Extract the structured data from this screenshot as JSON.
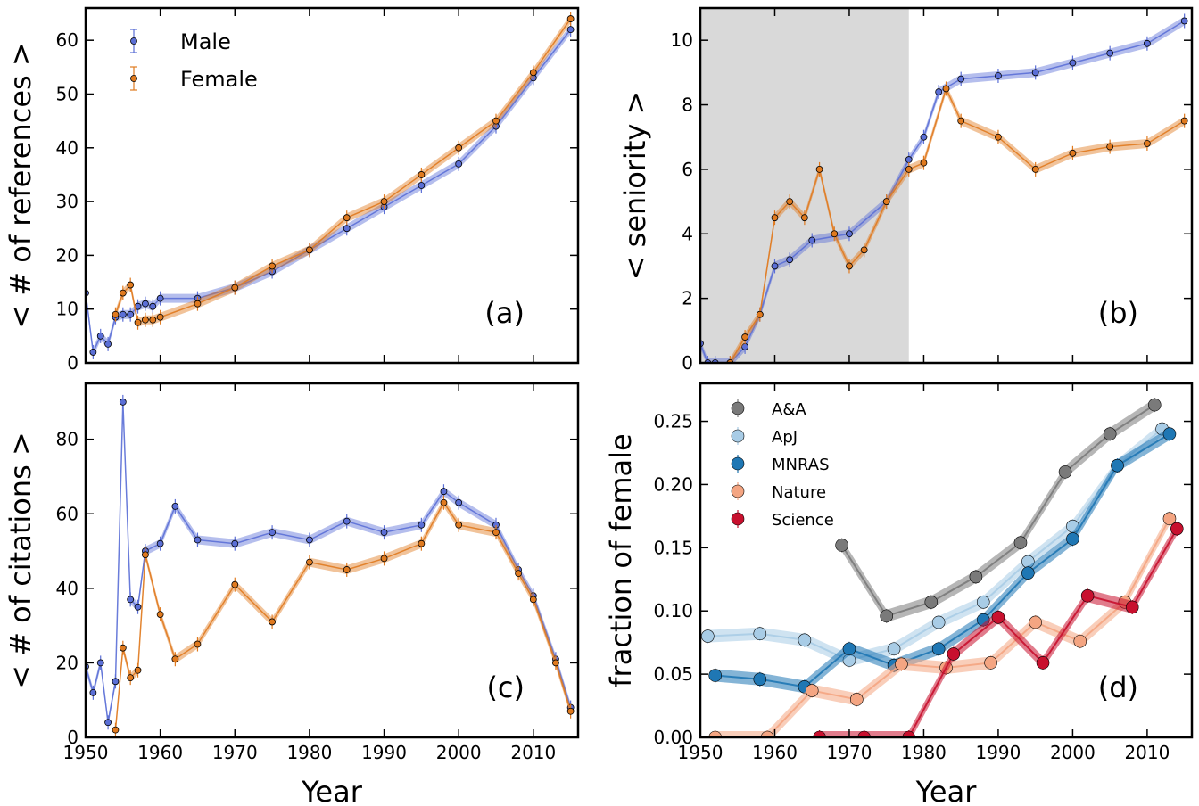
{
  "colors": {
    "male": "#5b6fd6",
    "female": "#e07a1f",
    "aa": "#7a7a7a",
    "apj": "#a8cce6",
    "mnras": "#1f77b4",
    "nature": "#f4a582",
    "science": "#c8102e",
    "shade": "#d9d9d9"
  },
  "chart_data": [
    {
      "id": "a",
      "type": "line",
      "panel_label": "(a)",
      "xlabel": "",
      "ylabel": "< # of references >",
      "xlim": [
        1950,
        2016
      ],
      "ylim": [
        0,
        66
      ],
      "xticks": [
        1950,
        1960,
        1970,
        1980,
        1990,
        2000,
        2010
      ],
      "xtick_labels": [
        "",
        "",
        "",
        "",
        "",
        "",
        ""
      ],
      "yticks": [
        0,
        10,
        20,
        30,
        40,
        50,
        60
      ],
      "ytick_labels": [
        "0",
        "10",
        "20",
        "30",
        "40",
        "50",
        "60"
      ],
      "legend": [
        "Male",
        "Female"
      ],
      "legend_position": "top-left",
      "series": [
        {
          "name": "Male",
          "x": [
            1950,
            1951,
            1952,
            1953,
            1954,
            1955,
            1956,
            1957,
            1958,
            1959,
            1960,
            1965,
            1970,
            1975,
            1980,
            1985,
            1990,
            1995,
            2000,
            2005,
            2010,
            2015
          ],
          "y": [
            13,
            2,
            5,
            3.5,
            8.5,
            9,
            9,
            10.5,
            11,
            10.5,
            12,
            12,
            14,
            17,
            21,
            25,
            29,
            33,
            37,
            44,
            53,
            62
          ]
        },
        {
          "name": "Female",
          "x": [
            1954,
            1955,
            1956,
            1957,
            1958,
            1959,
            1960,
            1965,
            1970,
            1975,
            1980,
            1985,
            1990,
            1995,
            2000,
            2005,
            2010,
            2015
          ],
          "y": [
            9,
            13,
            14.5,
            7.5,
            8,
            8,
            8.5,
            11,
            14,
            18,
            21,
            27,
            30,
            35,
            40,
            45,
            54,
            64
          ]
        }
      ]
    },
    {
      "id": "b",
      "type": "line",
      "panel_label": "(b)",
      "xlabel": "",
      "ylabel": "< seniority >",
      "xlim": [
        1950,
        2016
      ],
      "ylim": [
        0,
        11
      ],
      "shaded_region_x": [
        1950,
        1978
      ],
      "xticks": [
        1950,
        1960,
        1970,
        1980,
        1990,
        2000,
        2010
      ],
      "xtick_labels": [
        "",
        "",
        "",
        "",
        "",
        "",
        ""
      ],
      "yticks": [
        0,
        2,
        4,
        6,
        8,
        10
      ],
      "ytick_labels": [
        "0",
        "2",
        "4",
        "6",
        "8",
        "10"
      ],
      "series": [
        {
          "name": "Male",
          "x": [
            1950,
            1951,
            1952,
            1954,
            1956,
            1958,
            1960,
            1962,
            1965,
            1970,
            1975,
            1978,
            1980,
            1982,
            1985,
            1990,
            1995,
            2000,
            2005,
            2010,
            2015
          ],
          "y": [
            0.6,
            0,
            0,
            0,
            0.5,
            1.5,
            3,
            3.2,
            3.8,
            4,
            5,
            6.3,
            7,
            8.4,
            8.8,
            8.9,
            9,
            9.3,
            9.6,
            9.9,
            10.6
          ]
        },
        {
          "name": "Female",
          "x": [
            1954,
            1956,
            1958,
            1960,
            1962,
            1964,
            1966,
            1968,
            1970,
            1972,
            1975,
            1978,
            1980,
            1983,
            1985,
            1990,
            1995,
            2000,
            2005,
            2010,
            2015
          ],
          "y": [
            0,
            0.8,
            1.5,
            4.5,
            5,
            4.5,
            6,
            4,
            3,
            3.5,
            5,
            6,
            6.2,
            8.5,
            7.5,
            7,
            6,
            6.5,
            6.7,
            6.8,
            7.5
          ]
        }
      ]
    },
    {
      "id": "c",
      "type": "line",
      "panel_label": "(c)",
      "xlabel": "Year",
      "ylabel": "< # of citations >",
      "xlim": [
        1950,
        2016
      ],
      "ylim": [
        0,
        95
      ],
      "xticks": [
        1950,
        1960,
        1970,
        1980,
        1990,
        2000,
        2010
      ],
      "xtick_labels": [
        "1950",
        "1960",
        "1970",
        "1980",
        "1990",
        "2000",
        "2010"
      ],
      "yticks": [
        0,
        20,
        40,
        60,
        80
      ],
      "ytick_labels": [
        "0",
        "20",
        "40",
        "60",
        "80"
      ],
      "series": [
        {
          "name": "Male",
          "x": [
            1950,
            1951,
            1952,
            1953,
            1954,
            1955,
            1956,
            1957,
            1958,
            1960,
            1962,
            1965,
            1970,
            1975,
            1980,
            1985,
            1990,
            1995,
            1998,
            2000,
            2005,
            2008,
            2010,
            2013,
            2015
          ],
          "y": [
            19,
            12,
            20,
            4,
            15,
            90,
            37,
            35,
            50,
            52,
            62,
            53,
            52,
            55,
            53,
            58,
            55,
            57,
            66,
            63,
            57,
            45,
            38,
            21,
            8
          ]
        },
        {
          "name": "Female",
          "x": [
            1954,
            1955,
            1956,
            1957,
            1958,
            1960,
            1962,
            1965,
            1970,
            1975,
            1980,
            1985,
            1990,
            1995,
            1998,
            2000,
            2005,
            2008,
            2010,
            2013,
            2015
          ],
          "y": [
            2,
            24,
            16,
            18,
            49,
            33,
            21,
            25,
            41,
            31,
            47,
            45,
            48,
            52,
            63,
            57,
            55,
            44,
            37,
            20,
            7
          ]
        }
      ]
    },
    {
      "id": "d",
      "type": "line",
      "panel_label": "(d)",
      "xlabel": "Year",
      "ylabel": "fraction of female",
      "xlim": [
        1950,
        2016
      ],
      "ylim": [
        0,
        0.28
      ],
      "xticks": [
        1950,
        1960,
        1970,
        1980,
        1990,
        2000,
        2010
      ],
      "xtick_labels": [
        "1950",
        "1960",
        "1970",
        "1980",
        "1990",
        "2000",
        "2010"
      ],
      "yticks": [
        0,
        0.05,
        0.1,
        0.15,
        0.2,
        0.25
      ],
      "ytick_labels": [
        "0.00",
        "0.05",
        "0.10",
        "0.15",
        "0.20",
        "0.25"
      ],
      "legend": [
        "A&A",
        "ApJ",
        "MNRAS",
        "Nature",
        "Science"
      ],
      "legend_position": "top-left",
      "series": [
        {
          "name": "A&A",
          "x": [
            1969,
            1975,
            1981,
            1987,
            1993,
            1999,
            2005,
            2011
          ],
          "y": [
            0.152,
            0.096,
            0.107,
            0.127,
            0.154,
            0.21,
            0.24,
            0.263
          ]
        },
        {
          "name": "ApJ",
          "x": [
            1951,
            1958,
            1964,
            1970,
            1976,
            1982,
            1988,
            1994,
            2000,
            2006,
            2012
          ],
          "y": [
            0.08,
            0.082,
            0.077,
            0.061,
            0.07,
            0.091,
            0.107,
            0.139,
            0.167,
            0.215,
            0.244
          ]
        },
        {
          "name": "MNRAS",
          "x": [
            1952,
            1958,
            1964,
            1970,
            1976,
            1982,
            1988,
            1994,
            2000,
            2006,
            2013
          ],
          "y": [
            0.049,
            0.046,
            0.04,
            0.07,
            0.057,
            0.07,
            0.093,
            0.13,
            0.157,
            0.215,
            0.24
          ]
        },
        {
          "name": "Nature",
          "x": [
            1952,
            1959,
            1965,
            1971,
            1977,
            1983,
            1989,
            1995,
            2001,
            2007,
            2013
          ],
          "y": [
            0,
            0,
            0.037,
            0.03,
            0.058,
            0.055,
            0.059,
            0.091,
            0.076,
            0.107,
            0.173
          ]
        },
        {
          "name": "Science",
          "x": [
            1966,
            1972,
            1978,
            1984,
            1990,
            1996,
            2002,
            2008,
            2014
          ],
          "y": [
            0,
            0,
            0,
            0.066,
            0.095,
            0.059,
            0.112,
            0.103,
            0.165
          ]
        }
      ]
    }
  ]
}
